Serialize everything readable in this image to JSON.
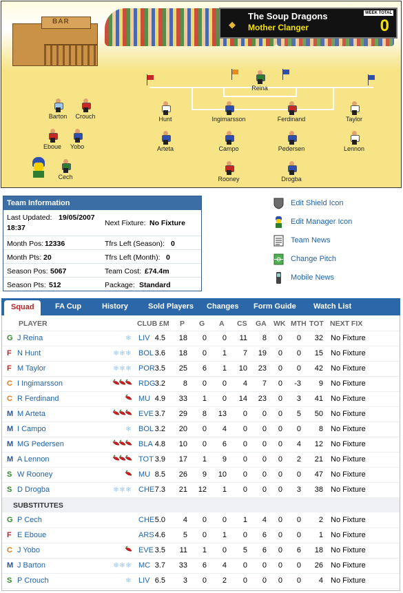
{
  "scoreboard": {
    "team_name": "The Soup Dragons",
    "manager_name": "Mother Clanger",
    "week_total_label": "WEEK TOTAL",
    "week_total": "0"
  },
  "pitch": {
    "bar_sign": "BAR",
    "players": [
      {
        "name": "Reina",
        "shirt": "#2e7d32",
        "role": "gk"
      },
      {
        "name": "Hunt",
        "shirt": "#ffffff"
      },
      {
        "name": "Ingimarsson",
        "shirt": "#2f4fb0"
      },
      {
        "name": "Ferdinand",
        "shirt": "#c62828"
      },
      {
        "name": "Taylor",
        "shirt": "#ffffff"
      },
      {
        "name": "Arteta",
        "shirt": "#2f4fb0"
      },
      {
        "name": "Campo",
        "shirt": "#2f4fb0"
      },
      {
        "name": "Pedersen",
        "shirt": "#2f4fb0"
      },
      {
        "name": "Lennon",
        "shirt": "#ffffff"
      },
      {
        "name": "Rooney",
        "shirt": "#c62828"
      },
      {
        "name": "Drogba",
        "shirt": "#2f4fb0"
      },
      {
        "name": "Barton",
        "shirt": "#9ec7ef"
      },
      {
        "name": "Crouch",
        "shirt": "#c62828"
      },
      {
        "name": "Eboue",
        "shirt": "#c62828"
      },
      {
        "name": "Yobo",
        "shirt": "#2f4fb0"
      },
      {
        "name": "Cech",
        "shirt": "#2e7d32"
      }
    ]
  },
  "team_info": {
    "title": "Team Information",
    "last_updated_label": "Last Updated:",
    "last_updated_value": "19/05/2007",
    "last_updated_time": "18:37",
    "next_fixture_label": "Next Fixture:",
    "next_fixture_value": "No Fixture",
    "month_pos_label": "Month Pos:",
    "month_pos_value": "12336",
    "tfrs_season_label": "Tfrs Left (Season):",
    "tfrs_season_value": "0",
    "month_pts_label": "Month Pts:",
    "month_pts_value": "20",
    "tfrs_month_label": "Tfrs Left (Month):",
    "tfrs_month_value": "0",
    "season_pos_label": "Season Pos:",
    "season_pos_value": "5067",
    "team_cost_label": "Team Cost:",
    "team_cost_value": "£74.4m",
    "season_pts_label": "Season Pts:",
    "season_pts_value": "512",
    "package_label": "Package:",
    "package_value": "Standard"
  },
  "side_links": [
    {
      "label": "Edit Shield Icon",
      "icon": "shield-icon"
    },
    {
      "label": "Edit Manager Icon",
      "icon": "manager-icon"
    },
    {
      "label": "Team News",
      "icon": "news-icon"
    },
    {
      "label": "Change Pitch",
      "icon": "pitch-icon"
    },
    {
      "label": "Mobile News",
      "icon": "mobile-icon"
    }
  ],
  "tabs": [
    "Squad",
    "FA Cup",
    "History",
    "Sold Players",
    "Changes",
    "Form Guide",
    "Watch List"
  ],
  "columns": [
    "PLAYER",
    "CLUB",
    "£M",
    "P",
    "G",
    "A",
    "CS",
    "GA",
    "WK",
    "MTH",
    "TOT",
    "NEXT FIX"
  ],
  "substitutes_label": "SUBSTITUTES",
  "colors": {
    "header_blue": "#2c67a8",
    "link_blue": "#1f63a8",
    "active_tab_red": "#b42222"
  },
  "squad": [
    {
      "pos": "G",
      "name": "J Reina",
      "form": "cold1",
      "club": "LIV",
      "price": "4.5",
      "p": "18",
      "g": "0",
      "a": "0",
      "cs": "11",
      "ga": "8",
      "wk": "0",
      "mth": "0",
      "tot": "32",
      "next": "No Fixture"
    },
    {
      "pos": "F",
      "name": "N Hunt",
      "form": "cold3",
      "club": "BOL",
      "price": "3.6",
      "p": "18",
      "g": "0",
      "a": "1",
      "cs": "7",
      "ga": "19",
      "wk": "0",
      "mth": "0",
      "tot": "15",
      "next": "No Fixture"
    },
    {
      "pos": "F",
      "name": "M Taylor",
      "form": "cold3",
      "club": "POR",
      "price": "3.5",
      "p": "25",
      "g": "6",
      "a": "1",
      "cs": "10",
      "ga": "23",
      "wk": "0",
      "mth": "0",
      "tot": "42",
      "next": "No Fixture"
    },
    {
      "pos": "C",
      "name": "I Ingimarsson",
      "form": "hot3",
      "club": "RDG",
      "price": "3.2",
      "p": "8",
      "g": "0",
      "a": "0",
      "cs": "4",
      "ga": "7",
      "wk": "0",
      "mth": "-3",
      "tot": "9",
      "next": "No Fixture"
    },
    {
      "pos": "C",
      "name": "R Ferdinand",
      "form": "hot1",
      "club": "MU",
      "price": "4.9",
      "p": "33",
      "g": "1",
      "a": "0",
      "cs": "14",
      "ga": "23",
      "wk": "0",
      "mth": "3",
      "tot": "41",
      "next": "No Fixture"
    },
    {
      "pos": "M",
      "name": "M Arteta",
      "form": "hot3",
      "club": "EVE",
      "price": "3.7",
      "p": "29",
      "g": "8",
      "a": "13",
      "cs": "0",
      "ga": "0",
      "wk": "0",
      "mth": "5",
      "tot": "50",
      "next": "No Fixture"
    },
    {
      "pos": "M",
      "name": "I Campo",
      "form": "cold1",
      "club": "BOL",
      "price": "3.2",
      "p": "20",
      "g": "0",
      "a": "4",
      "cs": "0",
      "ga": "0",
      "wk": "0",
      "mth": "0",
      "tot": "8",
      "next": "No Fixture"
    },
    {
      "pos": "M",
      "name": "MG Pedersen",
      "form": "hot3",
      "club": "BLA",
      "price": "4.8",
      "p": "10",
      "g": "0",
      "a": "6",
      "cs": "0",
      "ga": "0",
      "wk": "0",
      "mth": "4",
      "tot": "12",
      "next": "No Fixture"
    },
    {
      "pos": "M",
      "name": "A Lennon",
      "form": "hot3",
      "club": "TOT",
      "price": "3.9",
      "p": "17",
      "g": "1",
      "a": "9",
      "cs": "0",
      "ga": "0",
      "wk": "0",
      "mth": "2",
      "tot": "21",
      "next": "No Fixture"
    },
    {
      "pos": "S",
      "name": "W Rooney",
      "form": "hot1",
      "club": "MU",
      "price": "8.5",
      "p": "26",
      "g": "9",
      "a": "10",
      "cs": "0",
      "ga": "0",
      "wk": "0",
      "mth": "0",
      "tot": "47",
      "next": "No Fixture"
    },
    {
      "pos": "S",
      "name": "D Drogba",
      "form": "cold3",
      "club": "CHE",
      "price": "7.3",
      "p": "21",
      "g": "12",
      "a": "1",
      "cs": "0",
      "ga": "0",
      "wk": "0",
      "mth": "3",
      "tot": "38",
      "next": "No Fixture"
    }
  ],
  "substitutes": [
    {
      "pos": "G",
      "name": "P Cech",
      "form": "",
      "club": "CHE",
      "price": "5.0",
      "p": "4",
      "g": "0",
      "a": "0",
      "cs": "1",
      "ga": "4",
      "wk": "0",
      "mth": "0",
      "tot": "2",
      "next": "No Fixture"
    },
    {
      "pos": "F",
      "name": "E Eboue",
      "form": "",
      "club": "ARS",
      "price": "4.6",
      "p": "5",
      "g": "0",
      "a": "1",
      "cs": "0",
      "ga": "6",
      "wk": "0",
      "mth": "0",
      "tot": "1",
      "next": "No Fixture"
    },
    {
      "pos": "C",
      "name": "J Yobo",
      "form": "hot1",
      "club": "EVE",
      "price": "3.5",
      "p": "11",
      "g": "1",
      "a": "0",
      "cs": "5",
      "ga": "6",
      "wk": "0",
      "mth": "6",
      "tot": "18",
      "next": "No Fixture"
    },
    {
      "pos": "M",
      "name": "J Barton",
      "form": "cold3",
      "club": "MC",
      "price": "3.7",
      "p": "33",
      "g": "6",
      "a": "4",
      "cs": "0",
      "ga": "0",
      "wk": "0",
      "mth": "0",
      "tot": "26",
      "next": "No Fixture"
    },
    {
      "pos": "S",
      "name": "P Crouch",
      "form": "cold1",
      "club": "LIV",
      "price": "6.5",
      "p": "3",
      "g": "0",
      "a": "2",
      "cs": "0",
      "ga": "0",
      "wk": "0",
      "mth": "0",
      "tot": "4",
      "next": "No Fixture"
    }
  ]
}
